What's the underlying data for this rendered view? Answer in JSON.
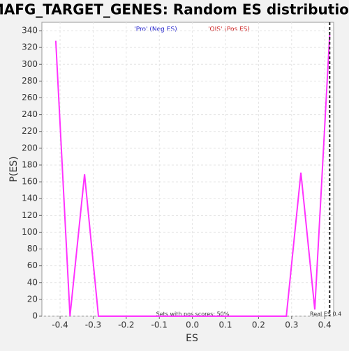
{
  "chart_data": {
    "type": "line",
    "title": "MAFG_TARGET_GENES: Random ES distribution",
    "x_label": "ES",
    "y_label": "P(ES)",
    "series": [
      {
        "name": "P(ES)",
        "color": "#ff33ff",
        "x": [
          -0.413,
          -0.37,
          -0.326,
          -0.284,
          0.284,
          0.328,
          0.37,
          0.415
        ],
        "values": [
          328,
          0,
          169,
          0,
          0,
          171,
          8,
          335
        ]
      }
    ],
    "xlim": [
      -0.455,
      0.427
    ],
    "ylim": [
      0,
      350
    ],
    "xticks": [
      -0.4,
      -0.3,
      -0.2,
      -0.1,
      {
        "value": 0,
        "label": "0.0"
      },
      0.1,
      0.2,
      0.3,
      0.4
    ],
    "yticks": [
      0,
      20,
      40,
      60,
      80,
      100,
      120,
      140,
      160,
      180,
      200,
      220,
      240,
      260,
      280,
      300,
      320,
      340
    ],
    "grid": true,
    "legend_neg": {
      "text": "'Pro' (Neg ES)",
      "color": "#2020cc"
    },
    "legend_pos": {
      "text": "'OIS' (Pos ES)",
      "color": "#cc2020"
    },
    "annotation": "Sets with pos scores: 50%",
    "real_es": 0.415,
    "real_es_label": "Real ES 0.4"
  }
}
